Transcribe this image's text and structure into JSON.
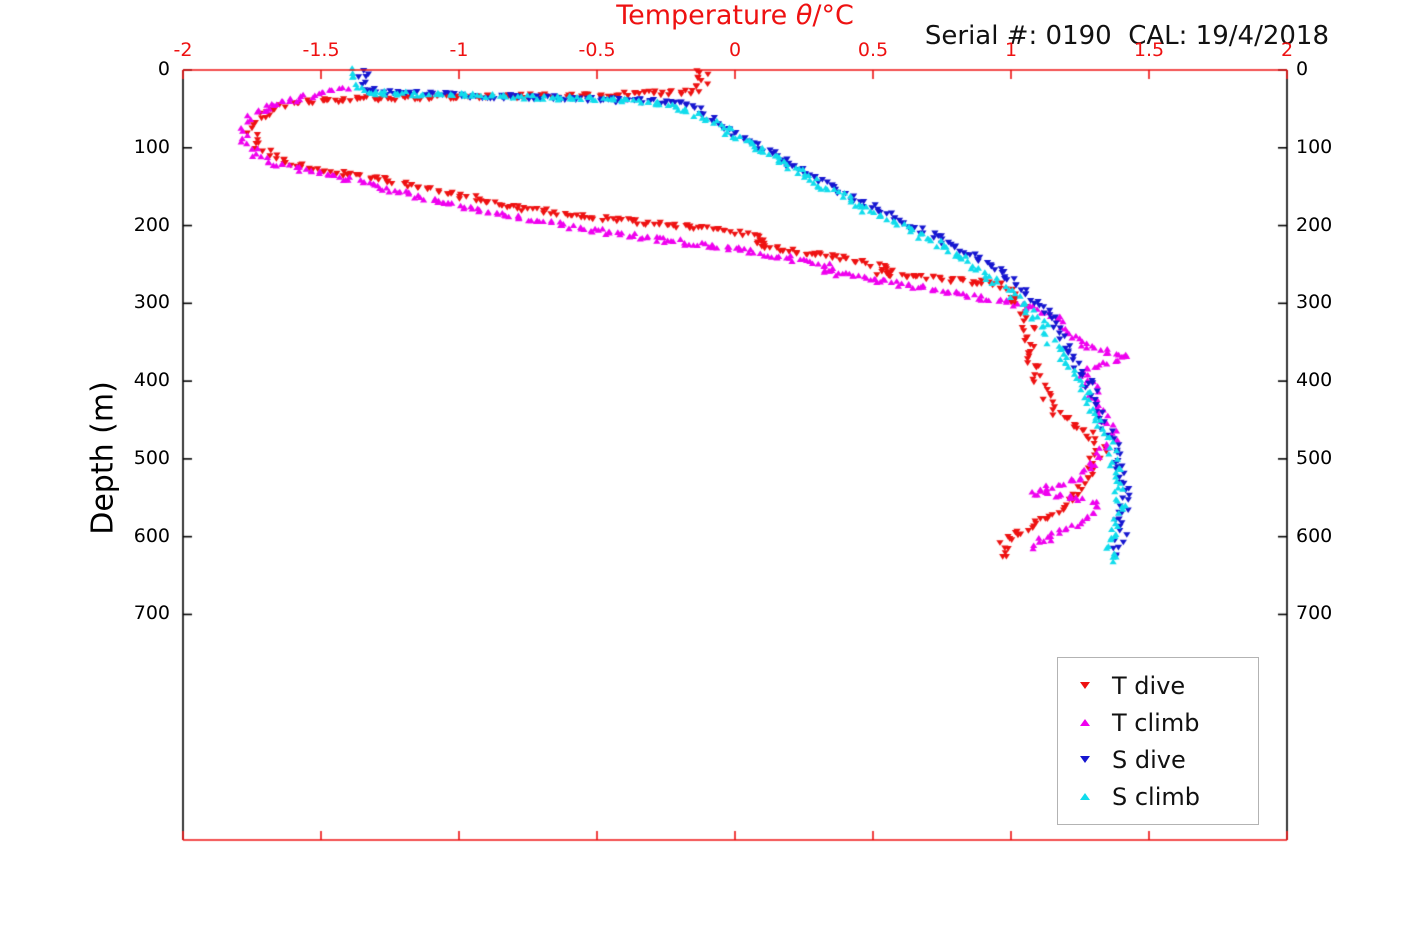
{
  "header": {
    "title_prefix": "Temperature ",
    "title_symbol": "θ",
    "title_suffix": "/°C",
    "serial_text": "Serial #: 0190  CAL: 19/4/2018"
  },
  "chart_data": {
    "type": "scatter",
    "title": "Temperature θ/°C",
    "annotation": "Serial #: 0190  CAL: 19/4/2018",
    "xlabel": "Temperature θ/°C",
    "ylabel": "Depth (m)",
    "x_axis_position": "top",
    "xlim": [
      -2,
      2
    ],
    "ylim": [
      0,
      990
    ],
    "x_ticks": [
      -2,
      -1.5,
      -1,
      -0.5,
      0,
      0.5,
      1,
      1.5,
      2
    ],
    "y_ticks": [
      0,
      100,
      200,
      300,
      400,
      500,
      600,
      700
    ],
    "grid": false,
    "legend_position": "lower right",
    "axis_color_x": "#ee1111",
    "axis_color_y": "#000000",
    "point_units": [
      "temperature_C",
      "depth_m"
    ],
    "series": [
      {
        "name": "T dive",
        "color": "#ee1111",
        "marker": "triangle-down",
        "points": [
          [
            -0.12,
            0
          ],
          [
            -0.11,
            6
          ],
          [
            -0.13,
            12
          ],
          [
            -0.12,
            18
          ],
          [
            -0.14,
            24
          ],
          [
            -0.16,
            28
          ],
          [
            -0.45,
            32
          ],
          [
            -0.9,
            35
          ],
          [
            -1.3,
            37
          ],
          [
            -1.55,
            40
          ],
          [
            -1.63,
            46
          ],
          [
            -1.68,
            52
          ],
          [
            -1.72,
            60
          ],
          [
            -1.74,
            70
          ],
          [
            -1.75,
            80
          ],
          [
            -1.74,
            90
          ],
          [
            -1.72,
            100
          ],
          [
            -1.69,
            110
          ],
          [
            -1.63,
            120
          ],
          [
            -1.52,
            128
          ],
          [
            -1.42,
            134
          ],
          [
            -1.3,
            140
          ],
          [
            -1.18,
            148
          ],
          [
            -1.07,
            156
          ],
          [
            -0.97,
            164
          ],
          [
            -0.86,
            172
          ],
          [
            -0.74,
            180
          ],
          [
            -0.6,
            187
          ],
          [
            -0.45,
            193
          ],
          [
            -0.3,
            198
          ],
          [
            -0.13,
            203
          ],
          [
            -0.02,
            208
          ],
          [
            0.06,
            214
          ],
          [
            0.12,
            220
          ],
          [
            0.08,
            226
          ],
          [
            0.18,
            232
          ],
          [
            0.3,
            238
          ],
          [
            0.42,
            244
          ],
          [
            0.5,
            250
          ],
          [
            0.56,
            256
          ],
          [
            0.52,
            261
          ],
          [
            0.62,
            265
          ],
          [
            0.74,
            269
          ],
          [
            0.86,
            273
          ],
          [
            0.96,
            277
          ],
          [
            1.0,
            283
          ],
          [
            1.02,
            290
          ],
          [
            1.0,
            297
          ],
          [
            1.04,
            305
          ],
          [
            1.06,
            315
          ],
          [
            1.05,
            325
          ],
          [
            1.07,
            335
          ],
          [
            1.05,
            345
          ],
          [
            1.07,
            355
          ],
          [
            1.06,
            365
          ],
          [
            1.08,
            375
          ],
          [
            1.1,
            385
          ],
          [
            1.09,
            395
          ],
          [
            1.11,
            405
          ],
          [
            1.13,
            418
          ],
          [
            1.15,
            432
          ],
          [
            1.18,
            445
          ],
          [
            1.22,
            458
          ],
          [
            1.28,
            468
          ],
          [
            1.32,
            478
          ],
          [
            1.33,
            488
          ],
          [
            1.31,
            498
          ],
          [
            1.29,
            510
          ],
          [
            1.27,
            522
          ],
          [
            1.25,
            535
          ],
          [
            1.23,
            548
          ],
          [
            1.2,
            560
          ],
          [
            1.15,
            572
          ],
          [
            1.1,
            582
          ],
          [
            1.04,
            592
          ],
          [
            1.0,
            600
          ],
          [
            0.98,
            610
          ],
          [
            1.0,
            618
          ],
          [
            0.97,
            626
          ]
        ]
      },
      {
        "name": "T climb",
        "color": "#ef00ef",
        "marker": "triangle-up",
        "points": [
          [
            -1.42,
            22
          ],
          [
            -1.5,
            30
          ],
          [
            -1.58,
            36
          ],
          [
            -1.65,
            42
          ],
          [
            -1.7,
            48
          ],
          [
            -1.73,
            54
          ],
          [
            -1.76,
            62
          ],
          [
            -1.77,
            72
          ],
          [
            -1.78,
            82
          ],
          [
            -1.77,
            92
          ],
          [
            -1.75,
            102
          ],
          [
            -1.72,
            112
          ],
          [
            -1.67,
            120
          ],
          [
            -1.58,
            127
          ],
          [
            -1.48,
            134
          ],
          [
            -1.4,
            141
          ],
          [
            -1.32,
            148
          ],
          [
            -1.22,
            156
          ],
          [
            -1.12,
            164
          ],
          [
            -1.02,
            172
          ],
          [
            -0.92,
            180
          ],
          [
            -0.8,
            188
          ],
          [
            -0.68,
            196
          ],
          [
            -0.55,
            204
          ],
          [
            -0.4,
            211
          ],
          [
            -0.25,
            218
          ],
          [
            -0.1,
            225
          ],
          [
            0.02,
            231
          ],
          [
            0.12,
            237
          ],
          [
            0.22,
            243
          ],
          [
            0.3,
            249
          ],
          [
            0.35,
            254
          ],
          [
            0.32,
            259
          ],
          [
            0.42,
            264
          ],
          [
            0.52,
            270
          ],
          [
            0.62,
            276
          ],
          [
            0.72,
            282
          ],
          [
            0.82,
            288
          ],
          [
            0.92,
            294
          ],
          [
            1.02,
            300
          ],
          [
            1.1,
            307
          ],
          [
            1.15,
            314
          ],
          [
            1.18,
            322
          ],
          [
            1.2,
            332
          ],
          [
            1.22,
            342
          ],
          [
            1.26,
            352
          ],
          [
            1.32,
            360
          ],
          [
            1.4,
            366
          ],
          [
            1.42,
            370
          ],
          [
            1.34,
            376
          ],
          [
            1.28,
            383
          ],
          [
            1.26,
            392
          ],
          [
            1.28,
            402
          ],
          [
            1.3,
            412
          ],
          [
            1.29,
            422
          ],
          [
            1.31,
            432
          ],
          [
            1.33,
            442
          ],
          [
            1.35,
            452
          ],
          [
            1.37,
            462
          ],
          [
            1.38,
            472
          ],
          [
            1.36,
            482
          ],
          [
            1.33,
            492
          ],
          [
            1.3,
            502
          ],
          [
            1.28,
            512
          ],
          [
            1.25,
            522
          ],
          [
            1.2,
            530
          ],
          [
            1.13,
            537
          ],
          [
            1.08,
            543
          ],
          [
            1.2,
            548
          ],
          [
            1.28,
            553
          ],
          [
            1.3,
            560
          ],
          [
            1.28,
            570
          ],
          [
            1.25,
            580
          ],
          [
            1.2,
            590
          ],
          [
            1.14,
            600
          ],
          [
            1.1,
            608
          ],
          [
            1.08,
            615
          ]
        ]
      },
      {
        "name": "S dive",
        "color": "#1515d0",
        "marker": "triangle-down",
        "points": [
          [
            -1.34,
            0
          ],
          [
            -1.35,
            8
          ],
          [
            -1.36,
            16
          ],
          [
            -1.35,
            24
          ],
          [
            -1.28,
            29
          ],
          [
            -1.05,
            32
          ],
          [
            -0.8,
            35
          ],
          [
            -0.5,
            38
          ],
          [
            -0.25,
            41
          ],
          [
            -0.17,
            45
          ],
          [
            -0.14,
            52
          ],
          [
            -0.11,
            60
          ],
          [
            -0.07,
            68
          ],
          [
            -0.02,
            78
          ],
          [
            0.03,
            88
          ],
          [
            0.08,
            98
          ],
          [
            0.13,
            108
          ],
          [
            0.18,
            118
          ],
          [
            0.23,
            128
          ],
          [
            0.28,
            138
          ],
          [
            0.33,
            148
          ],
          [
            0.38,
            158
          ],
          [
            0.44,
            168
          ],
          [
            0.5,
            178
          ],
          [
            0.56,
            188
          ],
          [
            0.62,
            198
          ],
          [
            0.68,
            208
          ],
          [
            0.74,
            218
          ],
          [
            0.8,
            228
          ],
          [
            0.85,
            238
          ],
          [
            0.9,
            248
          ],
          [
            0.95,
            258
          ],
          [
            1.0,
            268
          ],
          [
            1.03,
            278
          ],
          [
            1.06,
            288
          ],
          [
            1.09,
            298
          ],
          [
            1.12,
            310
          ],
          [
            1.15,
            322
          ],
          [
            1.17,
            334
          ],
          [
            1.19,
            348
          ],
          [
            1.21,
            362
          ],
          [
            1.24,
            378
          ],
          [
            1.27,
            394
          ],
          [
            1.29,
            410
          ],
          [
            1.31,
            428
          ],
          [
            1.33,
            446
          ],
          [
            1.35,
            464
          ],
          [
            1.37,
            482
          ],
          [
            1.39,
            500
          ],
          [
            1.4,
            520
          ],
          [
            1.41,
            540
          ],
          [
            1.41,
            560
          ],
          [
            1.4,
            580
          ],
          [
            1.4,
            598
          ],
          [
            1.39,
            612
          ],
          [
            1.38,
            626
          ]
        ]
      },
      {
        "name": "S climb",
        "color": "#10dcec",
        "marker": "triangle-up",
        "points": [
          [
            -1.37,
            0
          ],
          [
            -1.38,
            8
          ],
          [
            -1.37,
            16
          ],
          [
            -1.36,
            24
          ],
          [
            -1.33,
            28
          ],
          [
            -1.15,
            31
          ],
          [
            -0.88,
            33
          ],
          [
            -0.65,
            35
          ],
          [
            -0.52,
            37
          ],
          [
            -0.38,
            39
          ],
          [
            -0.27,
            42
          ],
          [
            -0.21,
            47
          ],
          [
            -0.16,
            54
          ],
          [
            -0.12,
            61
          ],
          [
            -0.07,
            70
          ],
          [
            -0.02,
            80
          ],
          [
            0.03,
            90
          ],
          [
            0.08,
            100
          ],
          [
            0.13,
            110
          ],
          [
            0.18,
            120
          ],
          [
            0.23,
            130
          ],
          [
            0.28,
            140
          ],
          [
            0.33,
            150
          ],
          [
            0.38,
            160
          ],
          [
            0.43,
            170
          ],
          [
            0.48,
            180
          ],
          [
            0.54,
            190
          ],
          [
            0.6,
            200
          ],
          [
            0.66,
            210
          ],
          [
            0.72,
            220
          ],
          [
            0.77,
            230
          ],
          [
            0.82,
            240
          ],
          [
            0.86,
            250
          ],
          [
            0.9,
            260
          ],
          [
            0.94,
            270
          ],
          [
            0.98,
            280
          ],
          [
            1.01,
            290
          ],
          [
            1.04,
            300
          ],
          [
            1.07,
            312
          ],
          [
            1.1,
            324
          ],
          [
            1.13,
            336
          ],
          [
            1.15,
            350
          ],
          [
            1.18,
            364
          ],
          [
            1.21,
            380
          ],
          [
            1.24,
            396
          ],
          [
            1.27,
            412
          ],
          [
            1.29,
            430
          ],
          [
            1.32,
            448
          ],
          [
            1.34,
            466
          ],
          [
            1.36,
            484
          ],
          [
            1.37,
            502
          ],
          [
            1.38,
            520
          ],
          [
            1.39,
            540
          ],
          [
            1.4,
            558
          ],
          [
            1.39,
            576
          ],
          [
            1.38,
            594
          ],
          [
            1.37,
            610
          ],
          [
            1.36,
            624
          ],
          [
            1.37,
            632
          ]
        ]
      }
    ]
  }
}
